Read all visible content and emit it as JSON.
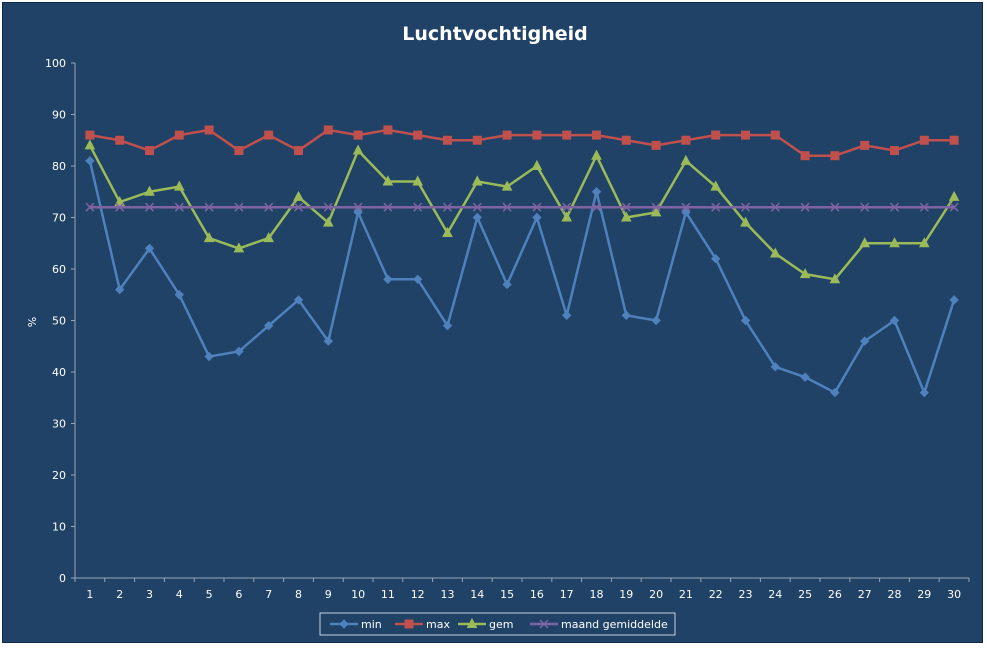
{
  "chart_data": {
    "type": "line",
    "title": "Luchtvochtigheid",
    "xlabel": "",
    "ylabel": "%",
    "ylim": [
      0,
      100
    ],
    "yticks": [
      0,
      10,
      20,
      30,
      40,
      50,
      60,
      70,
      80,
      90,
      100
    ],
    "grid": false,
    "legend_position": "bottom",
    "background_color": "#1f4266",
    "categories": [
      "1",
      "2",
      "3",
      "4",
      "5",
      "6",
      "7",
      "8",
      "9",
      "10",
      "11",
      "12",
      "13",
      "14",
      "15",
      "16",
      "17",
      "18",
      "19",
      "20",
      "21",
      "22",
      "23",
      "24",
      "25",
      "26",
      "27",
      "28",
      "29",
      "30"
    ],
    "series": [
      {
        "name": "min",
        "color": "#4f81bd",
        "marker": "diamond",
        "values": [
          81,
          56,
          64,
          55,
          43,
          44,
          49,
          54,
          46,
          71,
          58,
          58,
          49,
          70,
          57,
          70,
          51,
          75,
          51,
          50,
          71,
          62,
          50,
          41,
          39,
          36,
          46,
          50,
          36,
          54
        ]
      },
      {
        "name": "max",
        "color": "#c0504d",
        "marker": "square",
        "values": [
          86,
          85,
          83,
          86,
          87,
          83,
          86,
          83,
          87,
          86,
          87,
          86,
          85,
          85,
          86,
          86,
          86,
          86,
          85,
          84,
          85,
          86,
          86,
          86,
          82,
          82,
          84,
          83,
          85,
          85
        ]
      },
      {
        "name": "gem",
        "color": "#9bbb59",
        "marker": "triangle",
        "values": [
          84,
          73,
          75,
          76,
          66,
          64,
          66,
          74,
          69,
          83,
          77,
          77,
          67,
          77,
          76,
          80,
          70,
          82,
          70,
          71,
          81,
          76,
          69,
          63,
          59,
          58,
          65,
          65,
          65,
          74
        ]
      },
      {
        "name": "maand gemiddelde",
        "color": "#8064a2",
        "marker": "x",
        "values": [
          72,
          72,
          72,
          72,
          72,
          72,
          72,
          72,
          72,
          72,
          72,
          72,
          72,
          72,
          72,
          72,
          72,
          72,
          72,
          72,
          72,
          72,
          72,
          72,
          72,
          72,
          72,
          72,
          72,
          72
        ]
      }
    ]
  }
}
